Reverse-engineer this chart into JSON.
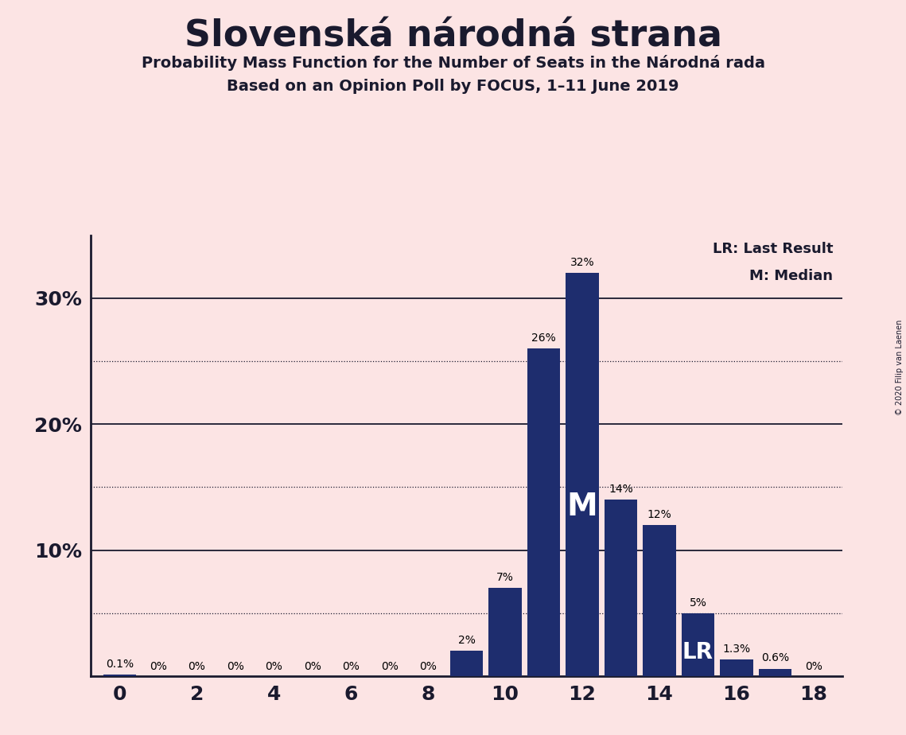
{
  "title": "Slovenská národná strana",
  "subtitle1": "Probability Mass Function for the Number of Seats in the Národná rada",
  "subtitle2": "Based on an Opinion Poll by FOCUS, 1–11 June 2019",
  "copyright": "© 2020 Filip van Laenen",
  "background_color": "#fce4e4",
  "bar_color": "#1e2d6e",
  "categories": [
    0,
    1,
    2,
    3,
    4,
    5,
    6,
    7,
    8,
    9,
    10,
    11,
    12,
    13,
    14,
    15,
    16,
    17,
    18
  ],
  "values": [
    0.1,
    0,
    0,
    0,
    0,
    0,
    0,
    0,
    0,
    2,
    7,
    26,
    32,
    14,
    12,
    5,
    1.3,
    0.6,
    0
  ],
  "labels": [
    "0.1%",
    "0%",
    "0%",
    "0%",
    "0%",
    "0%",
    "0%",
    "0%",
    "0%",
    "2%",
    "7%",
    "26%",
    "32%",
    "14%",
    "12%",
    "5%",
    "1.3%",
    "0.6%",
    "0%"
  ],
  "ylim": [
    0,
    35
  ],
  "ylines_solid": [
    10,
    20,
    30
  ],
  "ylines_dotted": [
    5,
    15,
    25
  ],
  "median_seat": 12,
  "lr_seat": 15,
  "legend_lr": "LR: Last Result",
  "legend_m": "M: Median"
}
